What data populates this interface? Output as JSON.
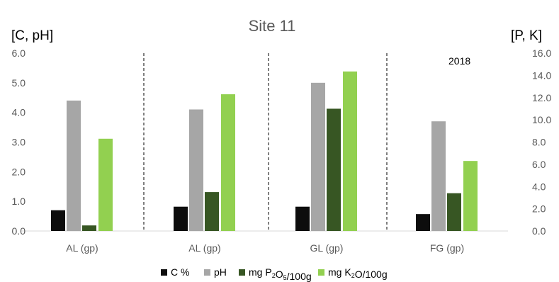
{
  "chart_data": {
    "type": "bar",
    "title": "Site 11",
    "annotation": "2018",
    "left_axis": {
      "label": "[C, pH]",
      "range": [
        0,
        6
      ],
      "ticks": [
        "0.0",
        "1.0",
        "2.0",
        "3.0",
        "4.0",
        "5.0",
        "6.0"
      ]
    },
    "right_axis": {
      "label": "[P, K]",
      "range": [
        0,
        16
      ],
      "ticks": [
        "0.0",
        "2.0",
        "4.0",
        "6.0",
        "8.0",
        "10.0",
        "12.0",
        "14.0",
        "16.0"
      ]
    },
    "categories": [
      "AL (gp)",
      "AL (gp)",
      "GL (gp)",
      "FG (gp)"
    ],
    "series": [
      {
        "name": "C %",
        "axis": "left",
        "color": "#0d0d0d",
        "values": [
          0.7,
          0.82,
          0.82,
          0.57
        ]
      },
      {
        "name": "pH",
        "axis": "left",
        "color": "#a6a6a6",
        "values": [
          4.4,
          4.1,
          5.0,
          3.7
        ]
      },
      {
        "name": "mg P2O5/100g",
        "axis": "right",
        "color": "#375623",
        "values": [
          0.5,
          3.5,
          11.0,
          3.4
        ]
      },
      {
        "name": "mg K2O/100g",
        "axis": "right",
        "color": "#92d050",
        "values": [
          8.3,
          12.3,
          14.35,
          6.3
        ]
      }
    ],
    "legend": {
      "position": "bottom",
      "items": [
        {
          "text": "C %"
        },
        {
          "text": "pH"
        },
        {
          "pre": "mg P",
          "s1": "2",
          "mid": "O",
          "s2": "5",
          "post": "/100g"
        },
        {
          "pre": "mg K",
          "s1": "2",
          "mid": "O",
          "s2": "",
          "post": "/100g"
        }
      ]
    },
    "separators": "dashed vertical between categories",
    "grid": false
  }
}
